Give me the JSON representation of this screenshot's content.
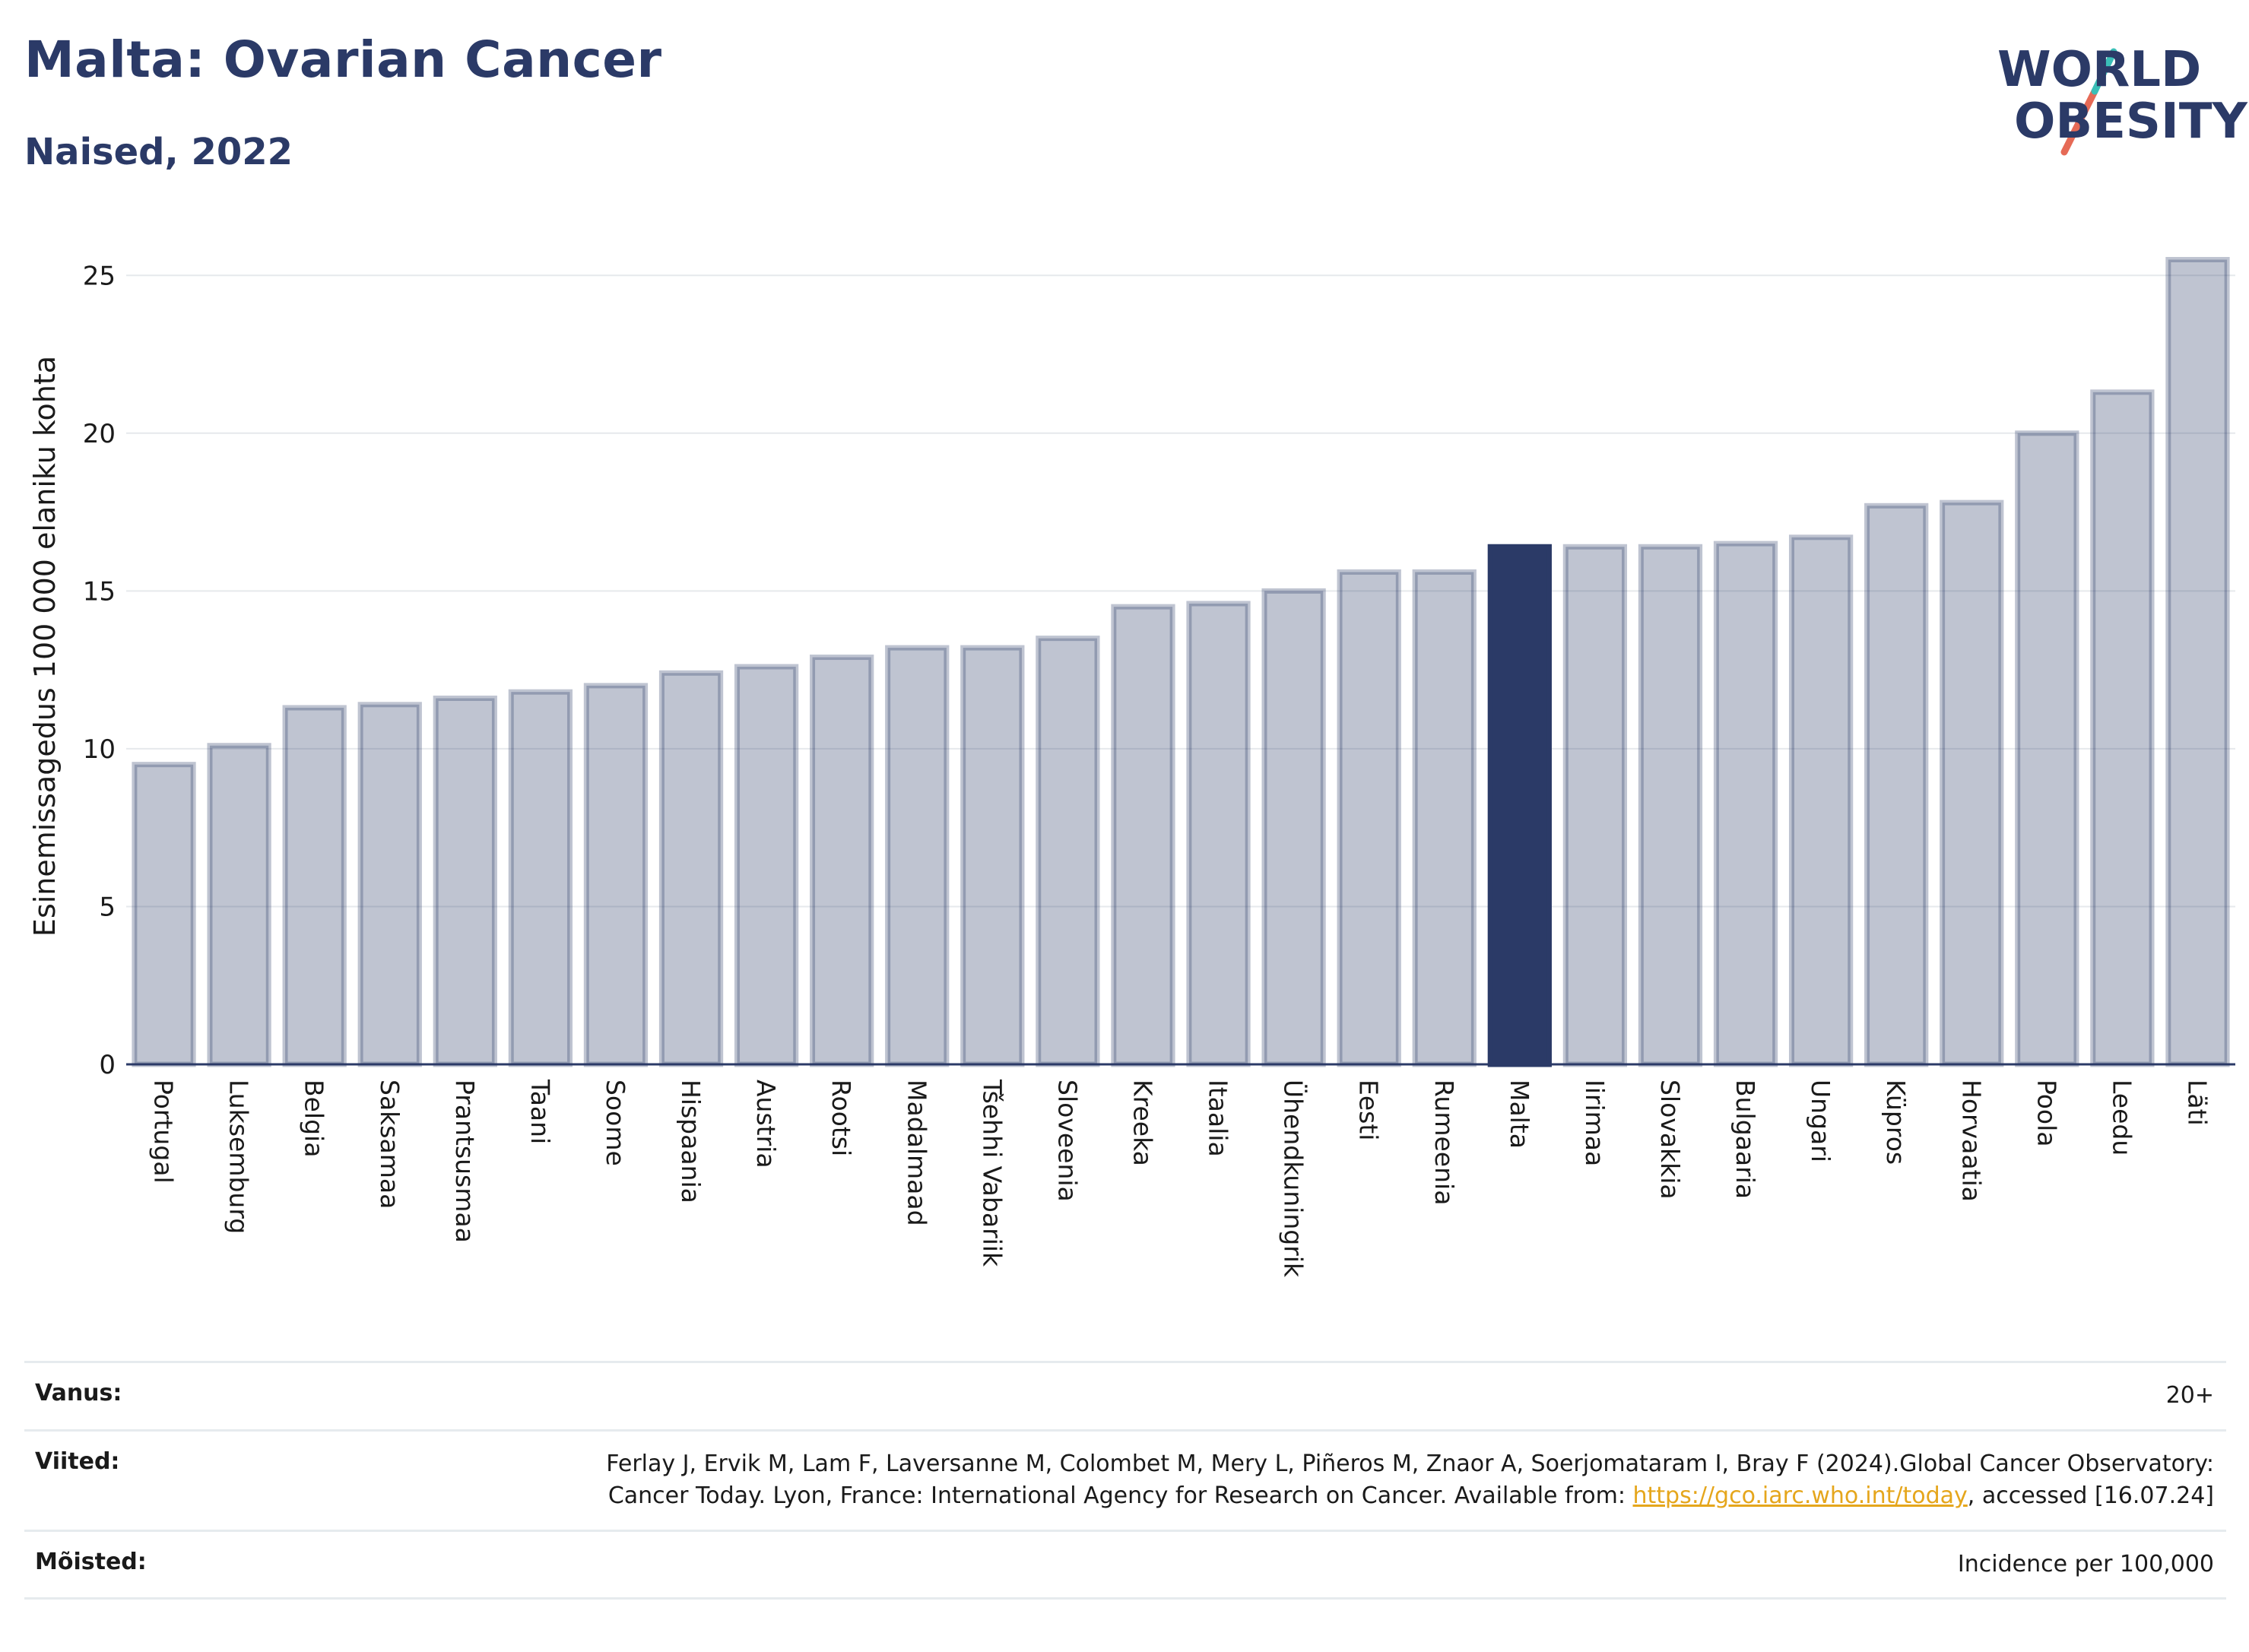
{
  "header": {
    "title": "Malta: Ovarian Cancer",
    "subtitle": "Naised, 2022"
  },
  "logo": {
    "line1": "WORLD",
    "line2": "OBESITY",
    "text_color": "#2b3a67",
    "accent_teal": "#3bbfb7",
    "accent_coral": "#e66a56"
  },
  "chart_data": {
    "type": "bar",
    "title": "Malta: Ovarian Cancer",
    "subtitle": "Naised, 2022",
    "ylabel": "Esinemissagedus 100 000 elaniku kohta",
    "xlabel": "",
    "ylim": [
      0,
      26.5
    ],
    "yticks": [
      0,
      5,
      10,
      15,
      20,
      25
    ],
    "grid": true,
    "highlight": "Malta",
    "colors": {
      "bar": "#2b3a67",
      "highlight": "#2b3a67"
    },
    "categories": [
      "Portugal",
      "Luksemburg",
      "Belgia",
      "Saksamaa",
      "Prantsusmaa",
      "Taani",
      "Soome",
      "Hispaania",
      "Austria",
      "Rootsi",
      "Madalmaad",
      "Tšehhi Vabariik",
      "Sloveenia",
      "Kreeka",
      "Itaalia",
      "Ühendkuningrik",
      "Eesti",
      "Rumeenia",
      "Malta",
      "Iirimaa",
      "Slovakkia",
      "Bulgaaria",
      "Ungari",
      "Küpros",
      "Horvaatia",
      "Poola",
      "Leedu",
      "Läti"
    ],
    "values": [
      9.5,
      10.1,
      11.3,
      11.4,
      11.6,
      11.8,
      12.0,
      12.4,
      12.6,
      12.9,
      13.2,
      13.2,
      13.5,
      14.5,
      14.6,
      15.0,
      15.6,
      15.6,
      16.4,
      16.4,
      16.4,
      16.5,
      16.7,
      17.7,
      17.8,
      20.0,
      21.3,
      25.5
    ]
  },
  "info": {
    "age_label": "Vanus:",
    "age_value": "20+",
    "ref_label": "Viited:",
    "ref_text_1": "Ferlay J, Ervik M, Lam F, Laversanne M, Colombet M, Mery L, Piñeros M, Znaor A, Soerjomataram I, Bray F (2024).Global Cancer Observatory: Cancer Today. Lyon, France: International Agency for Research on Cancer. Available from: ",
    "ref_link": "https://gco.iarc.who.int/today",
    "ref_text_2": ", accessed [16.07.24]",
    "def_label": "Mõisted:",
    "def_value": "Incidence per 100,000"
  }
}
